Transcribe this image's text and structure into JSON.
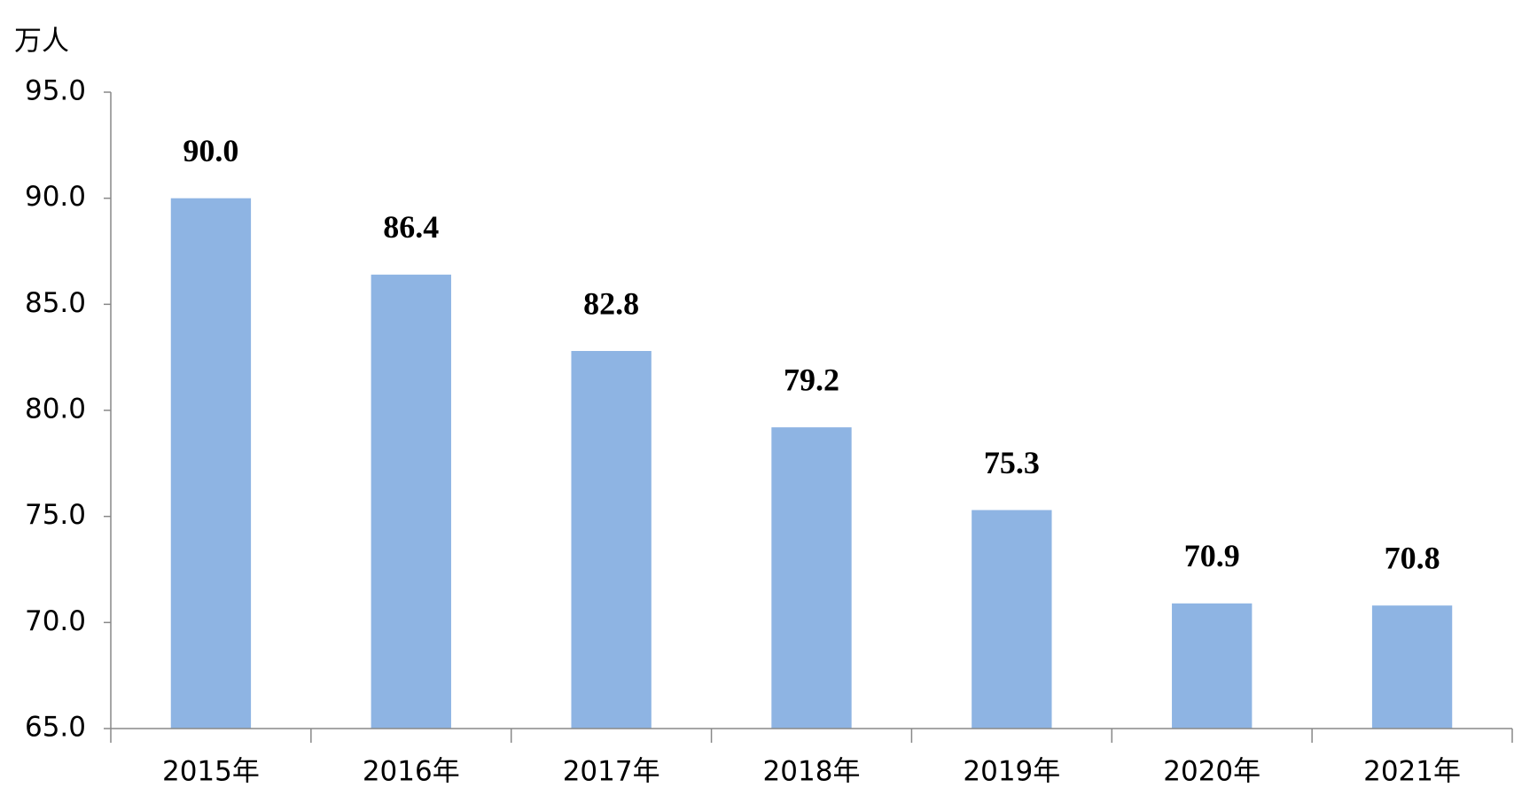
{
  "chart_data": {
    "type": "bar",
    "y_label": "万人",
    "categories": [
      "2015年",
      "2016年",
      "2017年",
      "2018年",
      "2019年",
      "2020年",
      "2021年"
    ],
    "values": [
      90.0,
      86.4,
      82.8,
      79.2,
      75.3,
      70.9,
      70.8
    ],
    "value_labels": [
      "90.0",
      "86.4",
      "82.8",
      "79.2",
      "75.3",
      "70.9",
      "70.8"
    ],
    "color": "#8eb4e3",
    "ylim": [
      65,
      95
    ],
    "yticks": [
      {
        "value": 65,
        "label": "65.0"
      },
      {
        "value": 70,
        "label": "70.0"
      },
      {
        "value": 75,
        "label": "75.0"
      },
      {
        "value": 80,
        "label": "80.0"
      },
      {
        "value": 85,
        "label": "85.0"
      },
      {
        "value": 90,
        "label": "90.0"
      },
      {
        "value": 95,
        "label": "95.0"
      }
    ],
    "grid": false
  }
}
